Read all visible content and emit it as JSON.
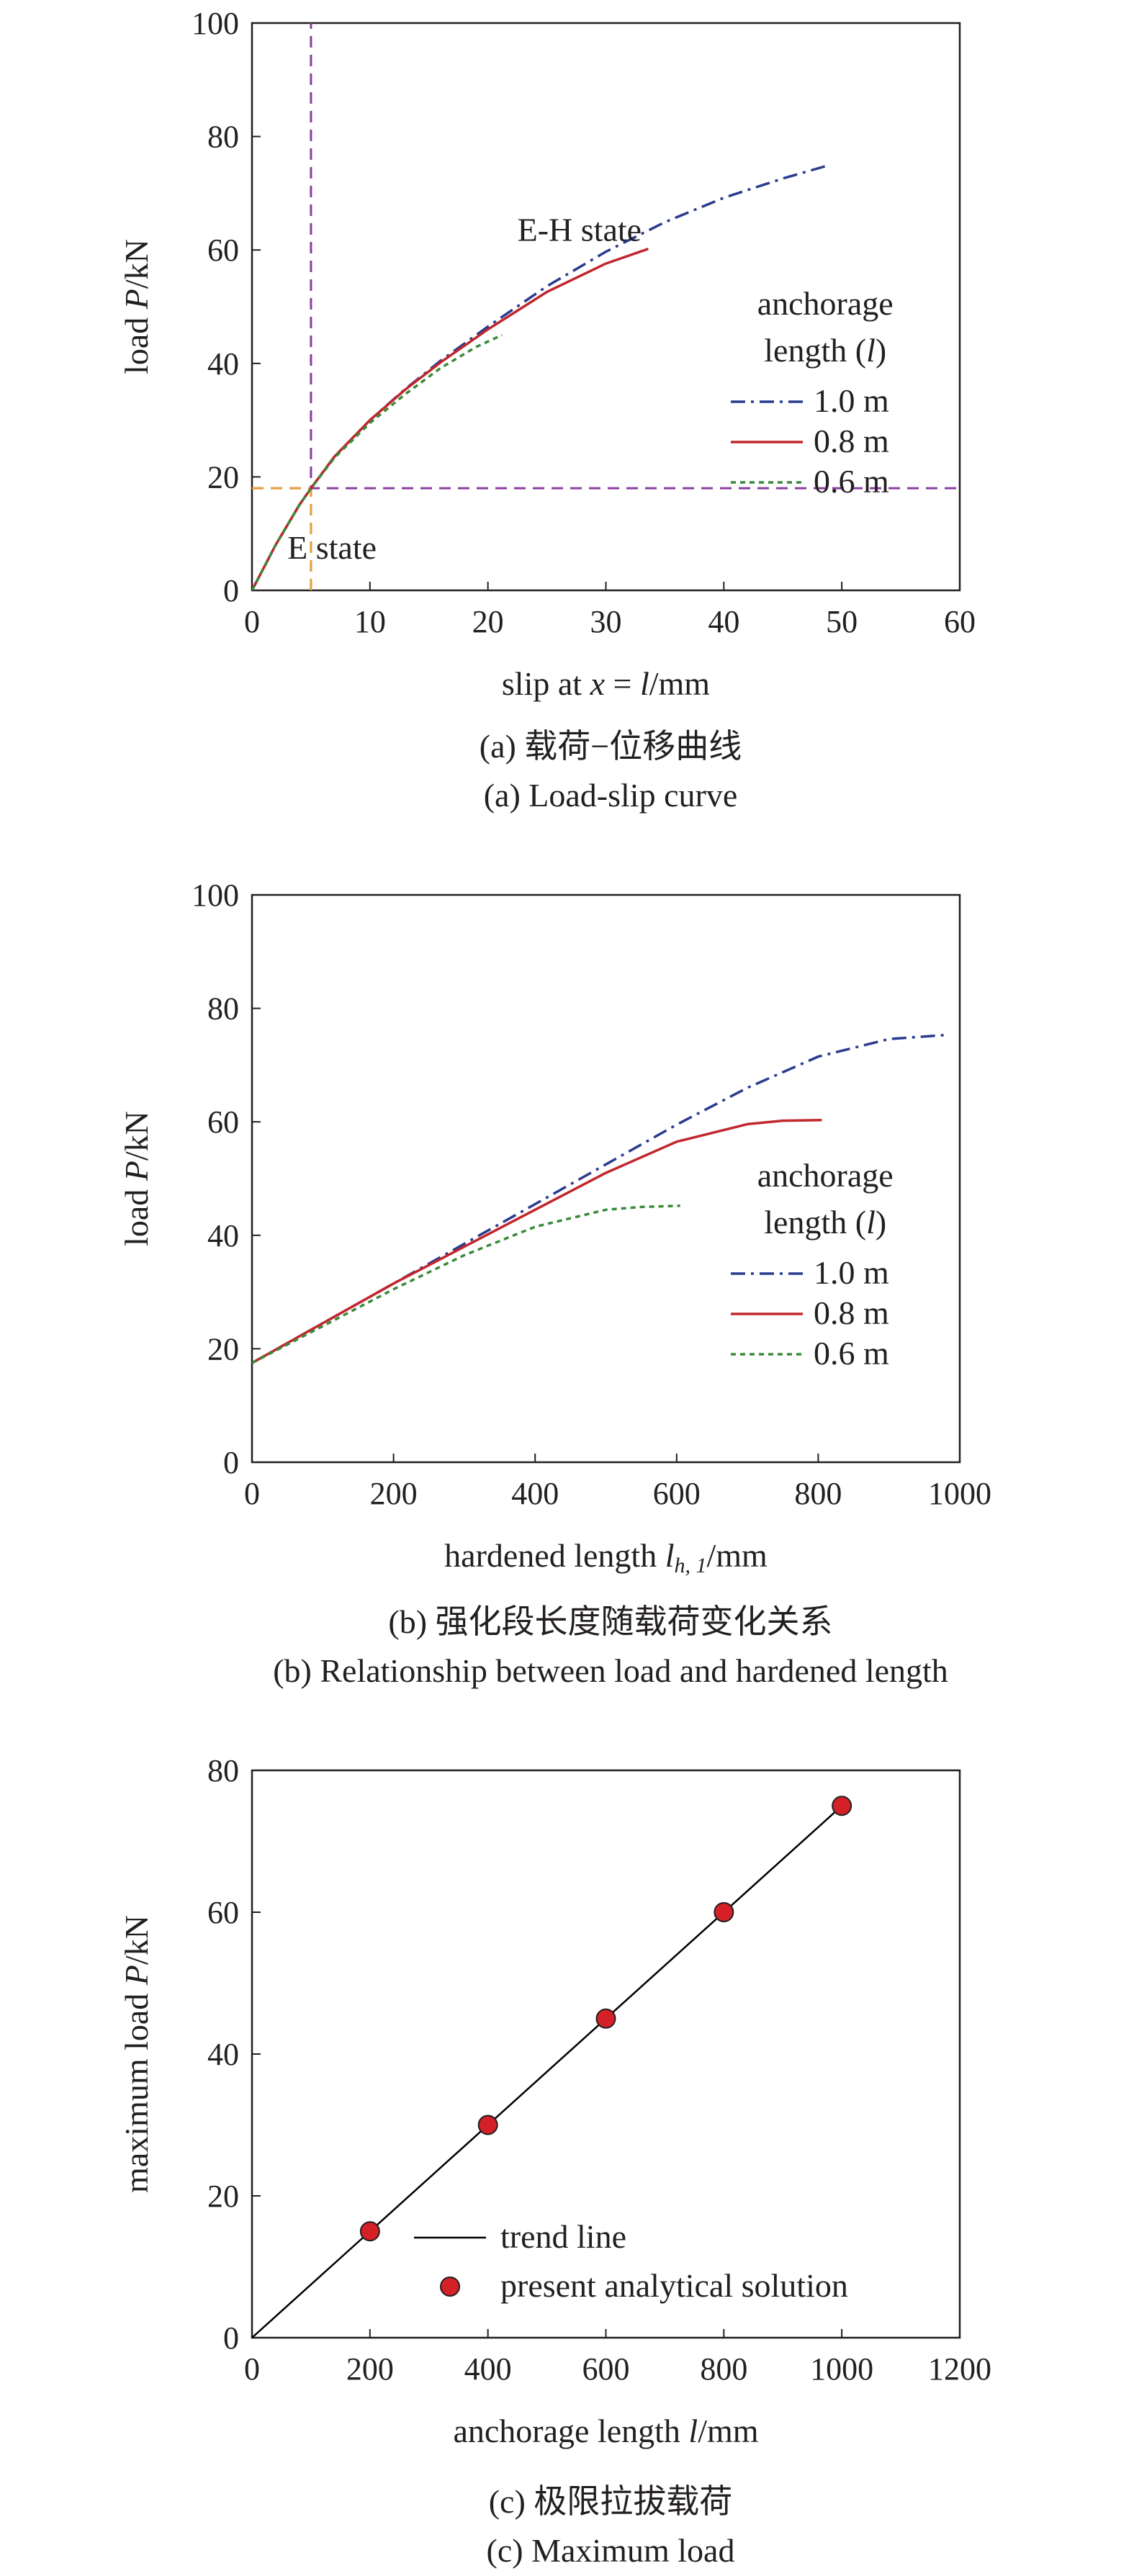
{
  "chart_data": [
    {
      "type": "line",
      "panel": "a",
      "xlabel": "slip at x = l/mm",
      "xlabel_parts": [
        "slip at ",
        "x",
        " = ",
        "l",
        "/mm"
      ],
      "ylabel": "load P/kN",
      "ylabel_parts": [
        "load ",
        "P",
        "/kN"
      ],
      "xlim": [
        0,
        60
      ],
      "ylim": [
        0,
        100
      ],
      "xticks": [
        0,
        10,
        20,
        30,
        40,
        50,
        60
      ],
      "yticks": [
        0,
        20,
        40,
        60,
        80,
        100
      ],
      "grid": false,
      "legend": {
        "title": "anchorage",
        "title_line2_parts": [
          "length (",
          "l",
          ")"
        ],
        "placement": "right"
      },
      "series": [
        {
          "name": "1.0 m",
          "style": "dashdot",
          "color": "#2b3b8f",
          "x": [
            0,
            2,
            4,
            5,
            7,
            10,
            13,
            16,
            20,
            25,
            30,
            35,
            40,
            45,
            49
          ],
          "y": [
            0,
            8,
            15,
            18,
            23.6,
            30,
            35.5,
            40.5,
            46.5,
            53.6,
            59.7,
            64.9,
            69.2,
            72.6,
            75
          ]
        },
        {
          "name": "0.8 m",
          "style": "solid",
          "color": "#c1272d",
          "x": [
            0,
            2,
            4,
            5,
            7,
            10,
            13,
            16,
            20,
            25,
            30,
            33.6
          ],
          "y": [
            0,
            8,
            15,
            18,
            23.6,
            30,
            35.4,
            40.2,
            46,
            52.6,
            57.6,
            60.2
          ]
        },
        {
          "name": "0.6 m",
          "style": "dotted",
          "color": "#3a8a3a",
          "x": [
            0,
            2,
            4,
            5,
            7,
            10,
            13,
            16,
            19,
            21.2
          ],
          "y": [
            0,
            8,
            15,
            18,
            23.4,
            29.5,
            34.6,
            39.2,
            42.9,
            45
          ]
        }
      ],
      "reference_lines": [
        {
          "orientation": "vertical",
          "value": 5,
          "color": "#8a3fa0",
          "style": "dashed"
        },
        {
          "orientation": "horizontal",
          "value": 18,
          "color": "#8a3fa0",
          "style": "dashed"
        },
        {
          "orientation": "vertical",
          "value": 5,
          "from": 0,
          "to": 18,
          "color": "#e8a33a",
          "style": "dashed"
        },
        {
          "orientation": "horizontal",
          "value": 18,
          "from": 0,
          "to": 5,
          "color": "#e8a33a",
          "style": "dashed"
        }
      ],
      "annotations": [
        {
          "text": "E-H state",
          "x": 22.5,
          "y": 63.5
        },
        {
          "text": "E state",
          "x": 3,
          "y": 7.5
        }
      ],
      "caption_cn": "(a) 载荷−位移曲线",
      "caption_en": "(a) Load-slip curve"
    },
    {
      "type": "line",
      "panel": "b",
      "xlabel": "hardened length l_h,1/mm",
      "xlabel_parts": [
        "hardened length ",
        "l",
        "h, 1",
        "/mm"
      ],
      "ylabel": "load P/kN",
      "ylabel_parts": [
        "load ",
        "P",
        "/kN"
      ],
      "xlim": [
        0,
        1000
      ],
      "ylim": [
        0,
        100
      ],
      "xticks": [
        0,
        200,
        400,
        600,
        800,
        1000
      ],
      "yticks": [
        0,
        20,
        40,
        60,
        80,
        100
      ],
      "grid": false,
      "legend": {
        "title": "anchorage",
        "title_line2_parts": [
          "length (",
          "l",
          ")"
        ],
        "placement": "right"
      },
      "series": [
        {
          "name": "1.0 m",
          "style": "dashdot",
          "color": "#2b3b8f",
          "x": [
            0,
            100,
            200,
            300,
            400,
            500,
            600,
            700,
            800,
            900,
            980
          ],
          "y": [
            17.5,
            24.5,
            31.5,
            38.5,
            45.5,
            52.5,
            59.5,
            66,
            71.5,
            74.6,
            75.3
          ]
        },
        {
          "name": "0.8 m",
          "style": "solid",
          "color": "#c1272d",
          "x": [
            0,
            100,
            200,
            300,
            400,
            500,
            600,
            700,
            750,
            805
          ],
          "y": [
            17.5,
            24.5,
            31.5,
            38,
            44.5,
            51,
            56.5,
            59.6,
            60.2,
            60.3
          ]
        },
        {
          "name": "0.6 m",
          "style": "dotted",
          "color": "#3a8a3a",
          "x": [
            0,
            100,
            200,
            300,
            400,
            500,
            550,
            605
          ],
          "y": [
            17.5,
            24,
            30.5,
            36.5,
            41.5,
            44.5,
            45,
            45.2
          ]
        }
      ],
      "caption_cn": "(b) 强化段长度随载荷变化关系",
      "caption_en": "(b) Relationship between load and hardened length"
    },
    {
      "type": "scatter",
      "panel": "c",
      "xlabel": "anchorage length l/mm",
      "xlabel_parts": [
        "anchorage length ",
        "l",
        "/mm"
      ],
      "ylabel": "maximum load P/kN",
      "ylabel_parts": [
        "maximum load ",
        "P",
        "/kN"
      ],
      "xlim": [
        0,
        1200
      ],
      "ylim": [
        0,
        80
      ],
      "xticks": [
        0,
        200,
        400,
        600,
        800,
        1000,
        1200
      ],
      "yticks": [
        0,
        20,
        40,
        60,
        80
      ],
      "grid": false,
      "legend": {
        "placement": "bottom-right"
      },
      "series": [
        {
          "name": "trend line",
          "kind": "line",
          "color": "#000000",
          "x": [
            0,
            1000
          ],
          "y": [
            0,
            75
          ]
        },
        {
          "name": "present analytical solution",
          "kind": "marker",
          "color": "#d42027",
          "x": [
            200,
            400,
            600,
            800,
            1000
          ],
          "y": [
            15,
            30,
            45,
            60,
            75
          ]
        }
      ],
      "caption_cn": "(c) 极限拉拔载荷",
      "caption_en": "(c) Maximum load"
    }
  ]
}
